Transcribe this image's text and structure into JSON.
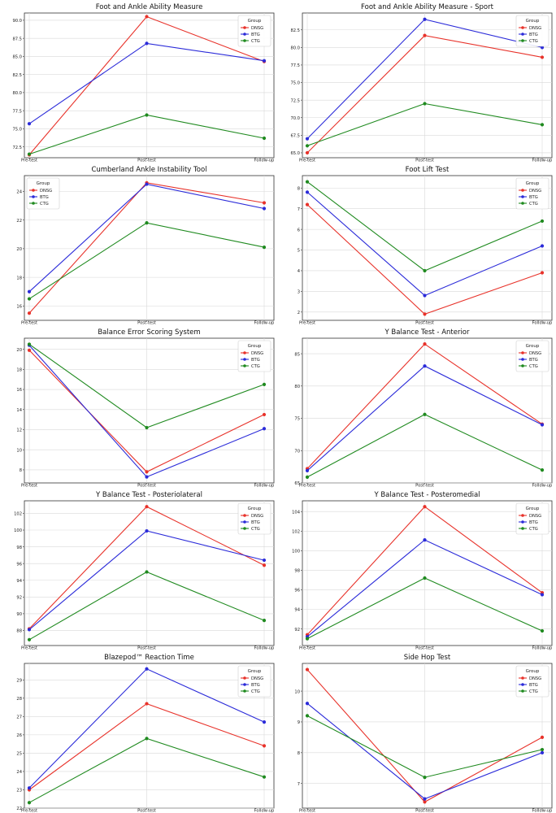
{
  "colors": {
    "DNSG": "#e8322a",
    "BTG": "#2b2bd9",
    "CTG": "#1f8a1f",
    "grid": "#d9d9d9",
    "axis": "#333333"
  },
  "chart_data": [
    {
      "type": "line",
      "title": "Foot and Ankle Ability Measure",
      "categories": [
        "Pre-test",
        "Post-test",
        "Follow-up"
      ],
      "series": [
        {
          "name": "DNSG",
          "values": [
            71.4,
            90.5,
            84.3
          ]
        },
        {
          "name": "BTG",
          "values": [
            75.7,
            86.8,
            84.4
          ]
        },
        {
          "name": "CTG",
          "values": [
            71.5,
            76.9,
            73.7
          ]
        }
      ],
      "ylim": [
        71.0,
        91.0
      ],
      "yticks": [
        "72.5",
        "75.0",
        "77.5",
        "80.0",
        "82.5",
        "85.0",
        "87.5",
        "90.0"
      ],
      "legend": {
        "title": "Group",
        "position": "top-right"
      }
    },
    {
      "type": "line",
      "title": "Foot and Ankle Ability Measure - Sport",
      "categories": [
        "Pre-test",
        "Post-test",
        "Follow-up"
      ],
      "series": [
        {
          "name": "DNSG",
          "values": [
            65.0,
            81.7,
            78.6
          ]
        },
        {
          "name": "BTG",
          "values": [
            67.0,
            84.0,
            80.0
          ]
        },
        {
          "name": "CTG",
          "values": [
            66.0,
            72.0,
            69.0
          ]
        }
      ],
      "ylim": [
        64.3,
        84.9
      ],
      "yticks": [
        "65.0",
        "67.5",
        "70.0",
        "72.5",
        "75.0",
        "77.5",
        "80.0",
        "82.5"
      ],
      "legend": {
        "title": "Group",
        "position": "top-right"
      }
    },
    {
      "type": "line",
      "title": "Cumberland Ankle Instability Tool",
      "categories": [
        "Pre-test",
        "Post-test",
        "Follow-up"
      ],
      "series": [
        {
          "name": "DNSG",
          "values": [
            15.5,
            24.6,
            23.2
          ]
        },
        {
          "name": "BTG",
          "values": [
            17.0,
            24.5,
            22.8
          ]
        },
        {
          "name": "CTG",
          "values": [
            16.5,
            21.8,
            20.1
          ]
        }
      ],
      "ylim": [
        15.0,
        25.1
      ],
      "yticks": [
        "16",
        "18",
        "20",
        "22",
        "24"
      ],
      "legend": {
        "title": "Group",
        "position": "top-left"
      }
    },
    {
      "type": "line",
      "title": "Foot Lift Test",
      "categories": [
        "Pre-test",
        "Post-test",
        "Follow-up"
      ],
      "series": [
        {
          "name": "DNSG",
          "values": [
            7.2,
            1.9,
            3.9
          ]
        },
        {
          "name": "BTG",
          "values": [
            7.8,
            2.8,
            5.2
          ]
        },
        {
          "name": "CTG",
          "values": [
            8.3,
            4.0,
            6.4
          ]
        }
      ],
      "ylim": [
        1.6,
        8.6
      ],
      "yticks": [
        "2",
        "3",
        "4",
        "5",
        "6",
        "7",
        "8"
      ],
      "legend": {
        "title": "Group",
        "position": "top-right"
      }
    },
    {
      "type": "line",
      "title": "Balance Error Scoring System",
      "categories": [
        "Pre-test",
        "Post-test",
        "Follow-up"
      ],
      "series": [
        {
          "name": "DNSG",
          "values": [
            19.9,
            7.8,
            13.5
          ]
        },
        {
          "name": "BTG",
          "values": [
            20.4,
            7.3,
            12.1
          ]
        },
        {
          "name": "CTG",
          "values": [
            20.5,
            12.2,
            16.5
          ]
        }
      ],
      "ylim": [
        6.7,
        21.1
      ],
      "yticks": [
        "8",
        "10",
        "12",
        "14",
        "16",
        "18",
        "20"
      ],
      "legend": {
        "title": "Group",
        "position": "top-right"
      }
    },
    {
      "type": "line",
      "title": "Y Balance Test - Anterior",
      "categories": [
        "Pre-test",
        "Post-test",
        "Follow-up"
      ],
      "series": [
        {
          "name": "DNSG",
          "values": [
            67.2,
            86.5,
            74.1
          ]
        },
        {
          "name": "BTG",
          "values": [
            66.9,
            83.1,
            74.0
          ]
        },
        {
          "name": "CTG",
          "values": [
            65.9,
            75.6,
            67.0
          ]
        }
      ],
      "ylim": [
        65.0,
        87.4
      ],
      "yticks": [
        "65",
        "70",
        "75",
        "80",
        "85"
      ],
      "legend": {
        "title": "Group",
        "position": "top-right"
      }
    },
    {
      "type": "line",
      "title": "Y Balance Test - Posteriolateral",
      "categories": [
        "Pre-test",
        "Post-test",
        "Follow-up"
      ],
      "series": [
        {
          "name": "DNSG",
          "values": [
            88.2,
            102.8,
            95.8
          ]
        },
        {
          "name": "BTG",
          "values": [
            88.1,
            99.9,
            96.4
          ]
        },
        {
          "name": "CTG",
          "values": [
            86.9,
            95.0,
            89.2
          ]
        }
      ],
      "ylim": [
        86.2,
        103.5
      ],
      "yticks": [
        "88",
        "90",
        "92",
        "94",
        "96",
        "98",
        "100",
        "102"
      ],
      "legend": {
        "title": "Group",
        "position": "top-right"
      }
    },
    {
      "type": "line",
      "title": "Y Balance Test - Posteromedial",
      "categories": [
        "Pre-test",
        "Post-test",
        "Follow-up"
      ],
      "series": [
        {
          "name": "DNSG",
          "values": [
            91.4,
            104.5,
            95.7
          ]
        },
        {
          "name": "BTG",
          "values": [
            91.2,
            101.1,
            95.5
          ]
        },
        {
          "name": "CTG",
          "values": [
            91.0,
            97.2,
            91.8
          ]
        }
      ],
      "ylim": [
        90.3,
        105.1
      ],
      "yticks": [
        "92",
        "94",
        "96",
        "98",
        "100",
        "102",
        "104"
      ],
      "legend": {
        "title": "Group",
        "position": "top-right"
      }
    },
    {
      "type": "line",
      "title": "Blazepod™ Reaction Time",
      "categories": [
        "Pre-test",
        "Post-test",
        "Follow-up"
      ],
      "series": [
        {
          "name": "DNSG",
          "values": [
            23.0,
            27.7,
            25.4
          ]
        },
        {
          "name": "BTG",
          "values": [
            23.1,
            29.6,
            26.7
          ]
        },
        {
          "name": "CTG",
          "values": [
            22.3,
            25.8,
            23.7
          ]
        }
      ],
      "ylim": [
        22.0,
        29.9
      ],
      "yticks": [
        "22",
        "23",
        "24",
        "25",
        "26",
        "27",
        "28",
        "29"
      ],
      "legend": {
        "title": "Group",
        "position": "top-right"
      }
    },
    {
      "type": "line",
      "title": "Side Hop Test",
      "categories": [
        "Pre-test",
        "Post-test",
        "Follow-up"
      ],
      "series": [
        {
          "name": "DNSG",
          "values": [
            10.7,
            6.4,
            8.5
          ]
        },
        {
          "name": "BTG",
          "values": [
            9.6,
            6.5,
            8.0
          ]
        },
        {
          "name": "CTG",
          "values": [
            9.2,
            7.2,
            8.1
          ]
        }
      ],
      "ylim": [
        6.2,
        10.9
      ],
      "yticks": [
        "7",
        "8",
        "9",
        "10"
      ],
      "legend": {
        "title": "Group",
        "position": "top-right"
      }
    }
  ]
}
